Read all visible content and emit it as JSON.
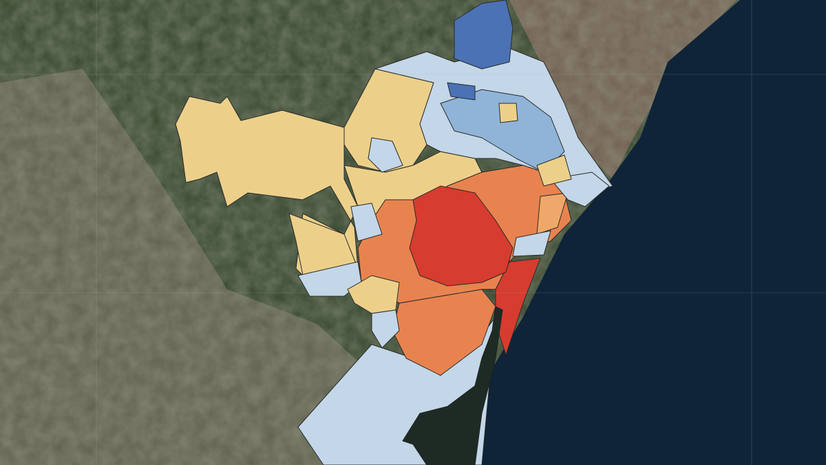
{
  "map": {
    "type": "choropleth",
    "basemap": "satellite",
    "colors": {
      "sea": "#0f2438",
      "land_forest": "#34452c",
      "land_urban": "#6e6a58",
      "class_dark_blue": "#4a72b4",
      "class_mid_blue": "#8fb4d8",
      "class_light_blue": "#c3d7e8",
      "class_yellow": "#ecd08a",
      "class_light_orange": "#f0a86a",
      "class_orange": "#e8834f",
      "class_red": "#d63c2f",
      "border": "#2a2a2a",
      "grid": "#a9b3b8"
    }
  }
}
